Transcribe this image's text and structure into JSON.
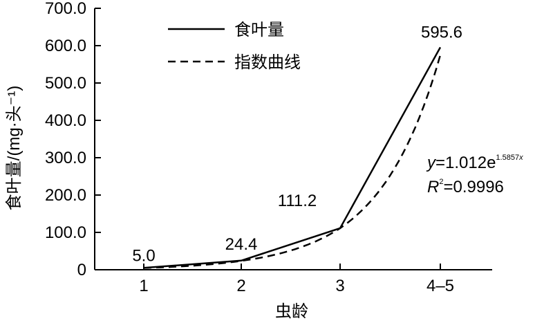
{
  "chart_data": {
    "type": "line",
    "categories": [
      "1",
      "2",
      "3",
      "4–5"
    ],
    "series": [
      {
        "name": "食叶量",
        "values": [
          5.0,
          24.4,
          111.2,
          595.6
        ],
        "style": "solid"
      },
      {
        "name": "指数曲线",
        "values": [
          4.9,
          23.8,
          111.2,
          575.0
        ],
        "style": "dashed"
      }
    ],
    "data_labels": [
      "5.0",
      "24.4",
      "111.2",
      "595.6"
    ],
    "y_ticks": [
      "0",
      "100.0",
      "200.0",
      "300.0",
      "400.0",
      "500.0",
      "600.0",
      "700.0"
    ],
    "ylim": [
      0,
      700
    ],
    "xlabel": "虫龄",
    "ylabel": "食叶量/(mg·头⁻¹)",
    "legend_position": "top-left",
    "grid": false,
    "annotation": {
      "y_var": "y",
      "eq_main": "=1.012e",
      "eq_exp": "1.5857",
      "x_var": "x",
      "r_var": "R",
      "r_exp": "2",
      "r_value": "=0.9996"
    },
    "colors": {
      "line": "#000000",
      "axis": "#000000"
    }
  }
}
